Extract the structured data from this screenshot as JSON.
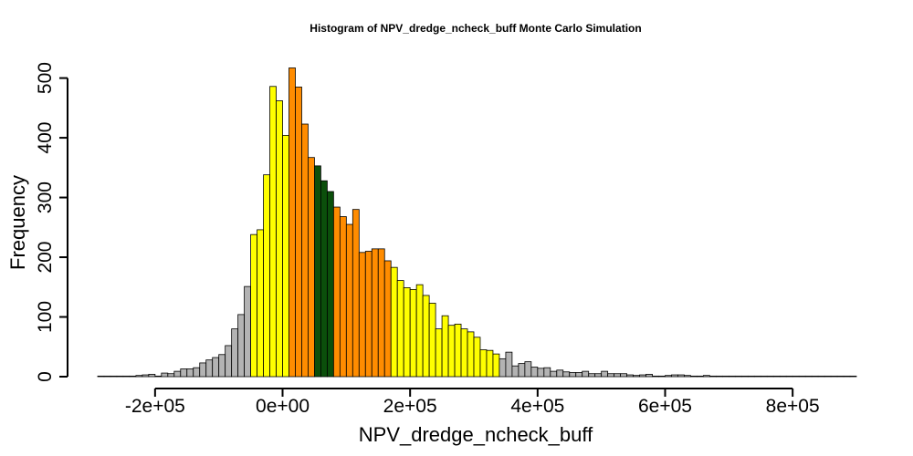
{
  "chart_data": {
    "type": "bar",
    "title": "Histogram of  NPV_dredge_ncheck_buff  Monte Carlo Simulation",
    "xlabel": "NPV_dredge_ncheck_buff",
    "ylabel": "Frequency",
    "x_ticks": [
      -200000,
      0,
      200000,
      400000,
      600000,
      800000
    ],
    "x_tick_labels": [
      "-2e+05",
      "0e+00",
      "2e+05",
      "4e+05",
      "6e+05",
      "8e+05"
    ],
    "y_ticks": [
      0,
      100,
      200,
      300,
      400,
      500
    ],
    "y_tick_labels": [
      "0",
      "100",
      "200",
      "300",
      "400",
      "500"
    ],
    "xlim": [
      -290000,
      900000
    ],
    "ylim": [
      0,
      520
    ],
    "bin_start": -290000,
    "bin_width": 10000,
    "values": [
      1,
      1,
      1,
      1,
      1,
      1,
      2,
      3,
      4,
      1,
      6,
      5,
      9,
      13,
      13,
      15,
      23,
      28,
      32,
      37,
      52,
      80,
      104,
      151,
      238,
      246,
      338,
      486,
      462,
      404,
      517,
      485,
      423,
      367,
      353,
      328,
      310,
      284,
      268,
      255,
      280,
      208,
      210,
      214,
      214,
      194,
      183,
      161,
      149,
      146,
      154,
      136,
      123,
      80,
      102,
      86,
      88,
      80,
      75,
      66,
      45,
      44,
      38,
      30,
      41,
      18,
      22,
      25,
      16,
      14,
      15,
      9,
      11,
      8,
      7,
      7,
      9,
      5,
      5,
      9,
      5,
      5,
      5,
      3,
      2,
      3,
      4,
      1,
      1,
      2,
      3,
      3,
      2,
      1,
      1,
      2,
      1,
      1,
      1,
      1,
      1,
      1,
      1,
      1,
      1,
      1,
      1,
      1,
      1,
      1,
      1,
      1,
      1,
      1,
      1,
      1,
      1,
      1,
      1
    ],
    "bin_colors": {
      "tail": "#B3B3B3",
      "mid": "#FFFF00",
      "inner": "#FF8C00",
      "center": "#0B4F0B",
      "tail_ranges": [
        [
          -290000,
          -50000
        ],
        [
          340000,
          900000
        ]
      ],
      "mid_ranges": [
        [
          -50000,
          10000
        ],
        [
          170000,
          340000
        ]
      ],
      "inner_ranges": [
        [
          10000,
          50000
        ],
        [
          80000,
          170000
        ]
      ],
      "center_ranges": [
        [
          50000,
          80000
        ]
      ]
    },
    "grid": false,
    "legend": "none"
  }
}
